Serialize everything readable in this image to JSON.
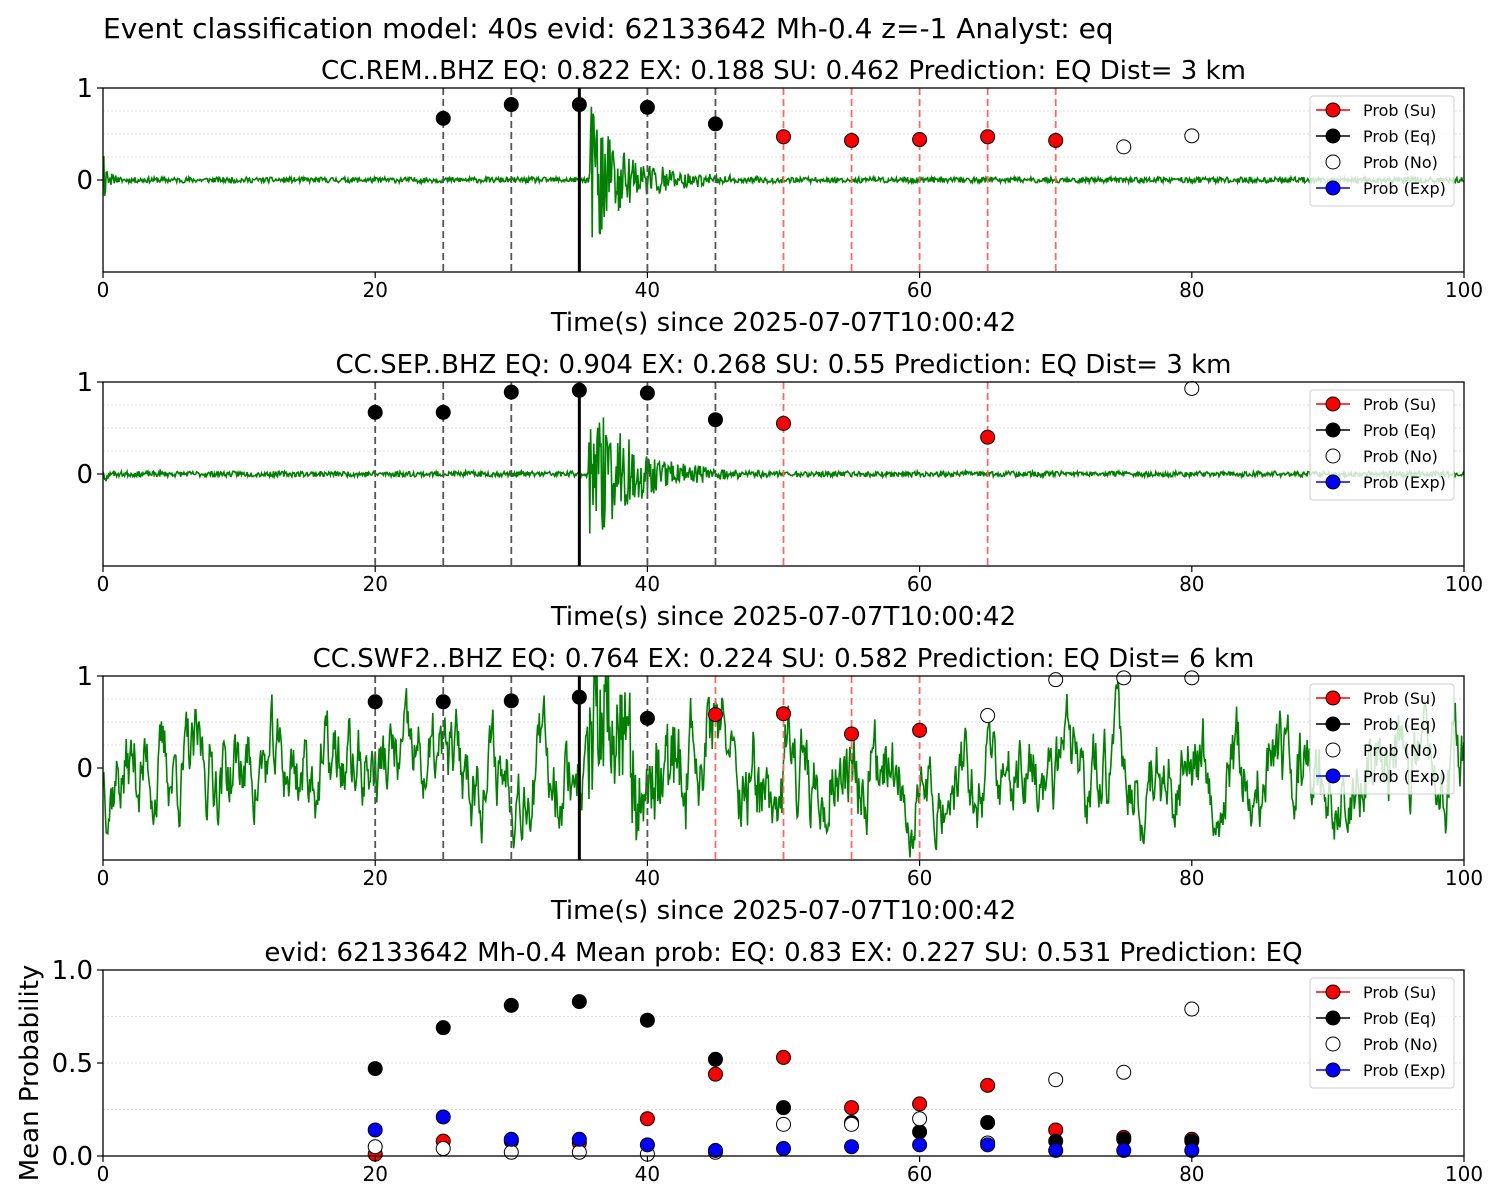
{
  "figure_title": "Event classification model: 40s evid: 62133642 Mh-0.4 z=-1 Analyst: eq",
  "colors": {
    "waveform": "#008000",
    "su": "#ff0000",
    "eq": "#000000",
    "no": "#ffffff",
    "exp": "#0000ff",
    "eq_vline": "#555555",
    "su_vline": "#ff6666",
    "pick_line": "#000000",
    "grid": "#dddddd"
  },
  "chart_data": [
    {
      "type": "line",
      "title": "CC.REM..BHZ   EQ: 0.822  EX: 0.188  SU: 0.462   Prediction: EQ    Dist= 3 km",
      "xlabel": "Time(s) since 2025-07-07T10:00:42",
      "ylabel": "",
      "xlim": [
        0,
        100
      ],
      "ylim": [
        -1,
        1
      ],
      "xticks": [
        "0",
        "20",
        "40",
        "60",
        "80",
        "100"
      ],
      "yticks": [
        "0",
        "1"
      ],
      "pick_time": 35,
      "eq_windows": [
        25,
        30,
        40,
        45
      ],
      "su_windows": [
        50,
        55,
        60,
        65,
        70
      ],
      "waveform": {
        "noise": 0.03,
        "onset": 35.7,
        "amp": 0.9,
        "decay": 0.35,
        "start_spike": 0.38,
        "smooth": false,
        "seed": 11
      },
      "series": [
        {
          "name": "Prob (Su)",
          "x": [
            50,
            55,
            60,
            65,
            70
          ],
          "y": [
            0.47,
            0.43,
            0.44,
            0.47,
            0.43
          ]
        },
        {
          "name": "Prob (Eq)",
          "x": [
            25,
            30,
            35,
            40,
            45
          ],
          "y": [
            0.67,
            0.82,
            0.82,
            0.79,
            0.61
          ]
        },
        {
          "name": "Prob (No)",
          "x": [
            75,
            80
          ],
          "y": [
            0.36,
            0.48
          ]
        },
        {
          "name": "Prob (Exp)",
          "x": [],
          "y": []
        }
      ]
    },
    {
      "type": "line",
      "title": "CC.SEP..BHZ   EQ: 0.904  EX: 0.268  SU: 0.55   Prediction: EQ    Dist= 3 km",
      "xlabel": "Time(s) since 2025-07-07T10:00:42",
      "ylabel": "",
      "xlim": [
        0,
        100
      ],
      "ylim": [
        -1,
        1
      ],
      "xticks": [
        "0",
        "20",
        "40",
        "60",
        "80",
        "100"
      ],
      "yticks": [
        "0",
        "1"
      ],
      "pick_time": 35,
      "eq_windows": [
        20,
        25,
        30,
        40,
        45
      ],
      "su_windows": [
        50,
        65
      ],
      "waveform": {
        "noise": 0.03,
        "onset": 35.7,
        "amp": 0.85,
        "decay": 0.3,
        "start_spike": 0.15,
        "smooth": false,
        "seed": 23
      },
      "series": [
        {
          "name": "Prob (Su)",
          "x": [
            50,
            65
          ],
          "y": [
            0.55,
            0.4
          ]
        },
        {
          "name": "Prob (Eq)",
          "x": [
            20,
            25,
            30,
            35,
            40,
            45
          ],
          "y": [
            0.67,
            0.67,
            0.89,
            0.91,
            0.88,
            0.59
          ]
        },
        {
          "name": "Prob (No)",
          "x": [
            80
          ],
          "y": [
            0.93
          ]
        },
        {
          "name": "Prob (Exp)",
          "x": [],
          "y": []
        }
      ]
    },
    {
      "type": "line",
      "title": "CC.SWF2..BHZ   EQ: 0.764  EX: 0.224  SU: 0.582   Prediction: EQ    Dist= 6 km",
      "xlabel": "Time(s) since 2025-07-07T10:00:42",
      "ylabel": "",
      "xlim": [
        0,
        100
      ],
      "ylim": [
        -1,
        1
      ],
      "xticks": [
        "0",
        "20",
        "40",
        "60",
        "80",
        "100"
      ],
      "yticks": [
        "0",
        "1"
      ],
      "pick_time": 35,
      "eq_windows": [
        20,
        25,
        30,
        40
      ],
      "su_windows": [
        45,
        50,
        55,
        60
      ],
      "waveform": {
        "noise": 0.32,
        "onset": 35.7,
        "amp": 0.6,
        "decay": 0.12,
        "start_spike": 0.0,
        "smooth": true,
        "seed": 37
      },
      "series": [
        {
          "name": "Prob (Su)",
          "x": [
            45,
            50,
            55,
            60
          ],
          "y": [
            0.58,
            0.59,
            0.37,
            0.41
          ]
        },
        {
          "name": "Prob (Eq)",
          "x": [
            20,
            25,
            30,
            35,
            40
          ],
          "y": [
            0.72,
            0.72,
            0.73,
            0.77,
            0.54
          ]
        },
        {
          "name": "Prob (No)",
          "x": [
            65,
            70,
            75,
            80
          ],
          "y": [
            0.57,
            0.96,
            0.98,
            0.98
          ]
        },
        {
          "name": "Prob (Exp)",
          "x": [],
          "y": []
        }
      ]
    },
    {
      "type": "scatter",
      "title": "evid: 62133642  Mh-0.4   Mean prob:   EQ: 0.83  EX: 0.227  SU: 0.531   Prediction: EQ",
      "xlabel": "",
      "ylabel": "Mean Probability",
      "xlim": [
        0,
        100
      ],
      "ylim": [
        0,
        1
      ],
      "xticks": [
        "0",
        "20",
        "40",
        "60",
        "80",
        "100"
      ],
      "yticks": [
        "0.0",
        "0.5",
        "1.0"
      ],
      "series": [
        {
          "name": "Prob (Su)",
          "x": [
            20,
            25,
            30,
            35,
            40,
            45,
            50,
            55,
            60,
            65,
            70,
            75,
            80
          ],
          "y": [
            0.01,
            0.08,
            0.08,
            0.07,
            0.2,
            0.44,
            0.53,
            0.26,
            0.28,
            0.38,
            0.14,
            0.1,
            0.09
          ]
        },
        {
          "name": "Prob (Eq)",
          "x": [
            20,
            25,
            30,
            35,
            40,
            45,
            50,
            55,
            60,
            65,
            70,
            75,
            80
          ],
          "y": [
            0.47,
            0.69,
            0.81,
            0.83,
            0.73,
            0.52,
            0.26,
            0.18,
            0.13,
            0.18,
            0.08,
            0.09,
            0.08
          ]
        },
        {
          "name": "Prob (No)",
          "x": [
            20,
            25,
            30,
            35,
            40,
            45,
            50,
            55,
            60,
            65,
            70,
            75,
            80
          ],
          "y": [
            0.05,
            0.04,
            0.02,
            0.02,
            0.01,
            0.02,
            0.17,
            0.17,
            0.2,
            0.07,
            0.41,
            0.45,
            0.79
          ]
        },
        {
          "name": "Prob (Exp)",
          "x": [
            20,
            25,
            30,
            35,
            40,
            45,
            50,
            55,
            60,
            65,
            70,
            75,
            80
          ],
          "y": [
            0.14,
            0.21,
            0.09,
            0.09,
            0.06,
            0.03,
            0.04,
            0.05,
            0.06,
            0.06,
            0.03,
            0.03,
            0.03
          ]
        }
      ]
    }
  ]
}
